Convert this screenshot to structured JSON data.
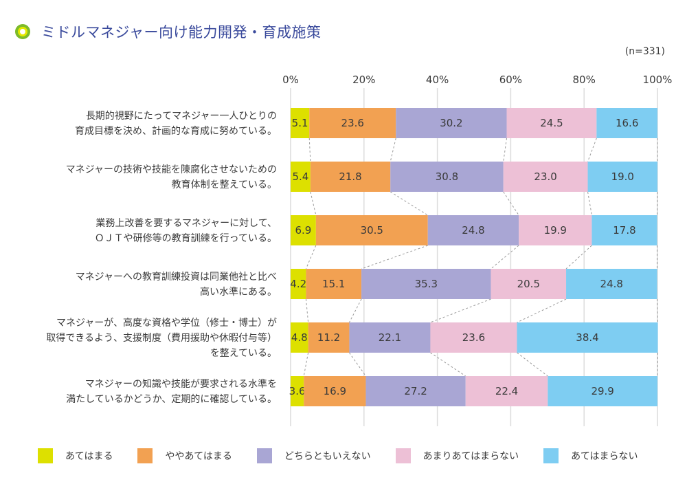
{
  "title": "ミドルマネジャー向け能力開発・育成施策",
  "title_icon": "ring-bullet-icon",
  "sample_size": "(n=331)",
  "colors": {
    "title": "#3a4a9c",
    "series": [
      "#dde000",
      "#f2a152",
      "#a9a6d4",
      "#edc0d6",
      "#7ecdf2"
    ],
    "grid": "#dcdcdc",
    "connector": "#9a9a9a"
  },
  "chart_data": {
    "type": "bar",
    "orientation": "horizontal",
    "stacked": true,
    "title": "ミドルマネジャー向け能力開発・育成施策",
    "xlabel": "",
    "ylabel": "",
    "xlim": [
      0,
      100
    ],
    "x_ticks": [
      "0%",
      "20%",
      "40%",
      "60%",
      "80%",
      "100%"
    ],
    "x_tick_values": [
      0,
      20,
      40,
      60,
      80,
      100
    ],
    "grid": true,
    "legend_position": "bottom",
    "note": "(n=331)",
    "categories": [
      [
        "長期的視野にたってマネジャー一人ひとりの",
        "育成目標を決め、計画的な育成に努めている。"
      ],
      [
        "マネジャーの技術や技能を陳腐化させないための",
        "教育体制を整えている。"
      ],
      [
        "業務上改善を要するマネジャーに対して、",
        "ＯＪＴや研修等の教育訓練を行っている。"
      ],
      [
        "マネジャーへの教育訓練投資は同業他社と比べ",
        "高い水準にある。"
      ],
      [
        "マネジャーが、高度な資格や学位（修士・博士）が",
        "取得できるよう、支援制度（費用援助や休暇付与等）",
        "を整えている。"
      ],
      [
        "マネジャーの知識や技能が要求される水準を",
        "満たしているかどうか、定期的に確認している。"
      ]
    ],
    "series": [
      {
        "name": "あてはまる",
        "values": [
          5.1,
          5.4,
          6.9,
          4.2,
          4.8,
          3.6
        ]
      },
      {
        "name": "ややあてはまる",
        "values": [
          23.6,
          21.8,
          30.5,
          15.1,
          11.2,
          16.9
        ]
      },
      {
        "name": "どちらともいえない",
        "values": [
          30.2,
          30.8,
          24.8,
          35.3,
          22.1,
          27.2
        ]
      },
      {
        "name": "あまりあてはまらない",
        "values": [
          24.5,
          23.0,
          19.9,
          20.5,
          23.6,
          22.4
        ]
      },
      {
        "name": "あてはまらない",
        "values": [
          16.6,
          19.0,
          17.8,
          24.8,
          38.4,
          29.9
        ]
      }
    ]
  }
}
